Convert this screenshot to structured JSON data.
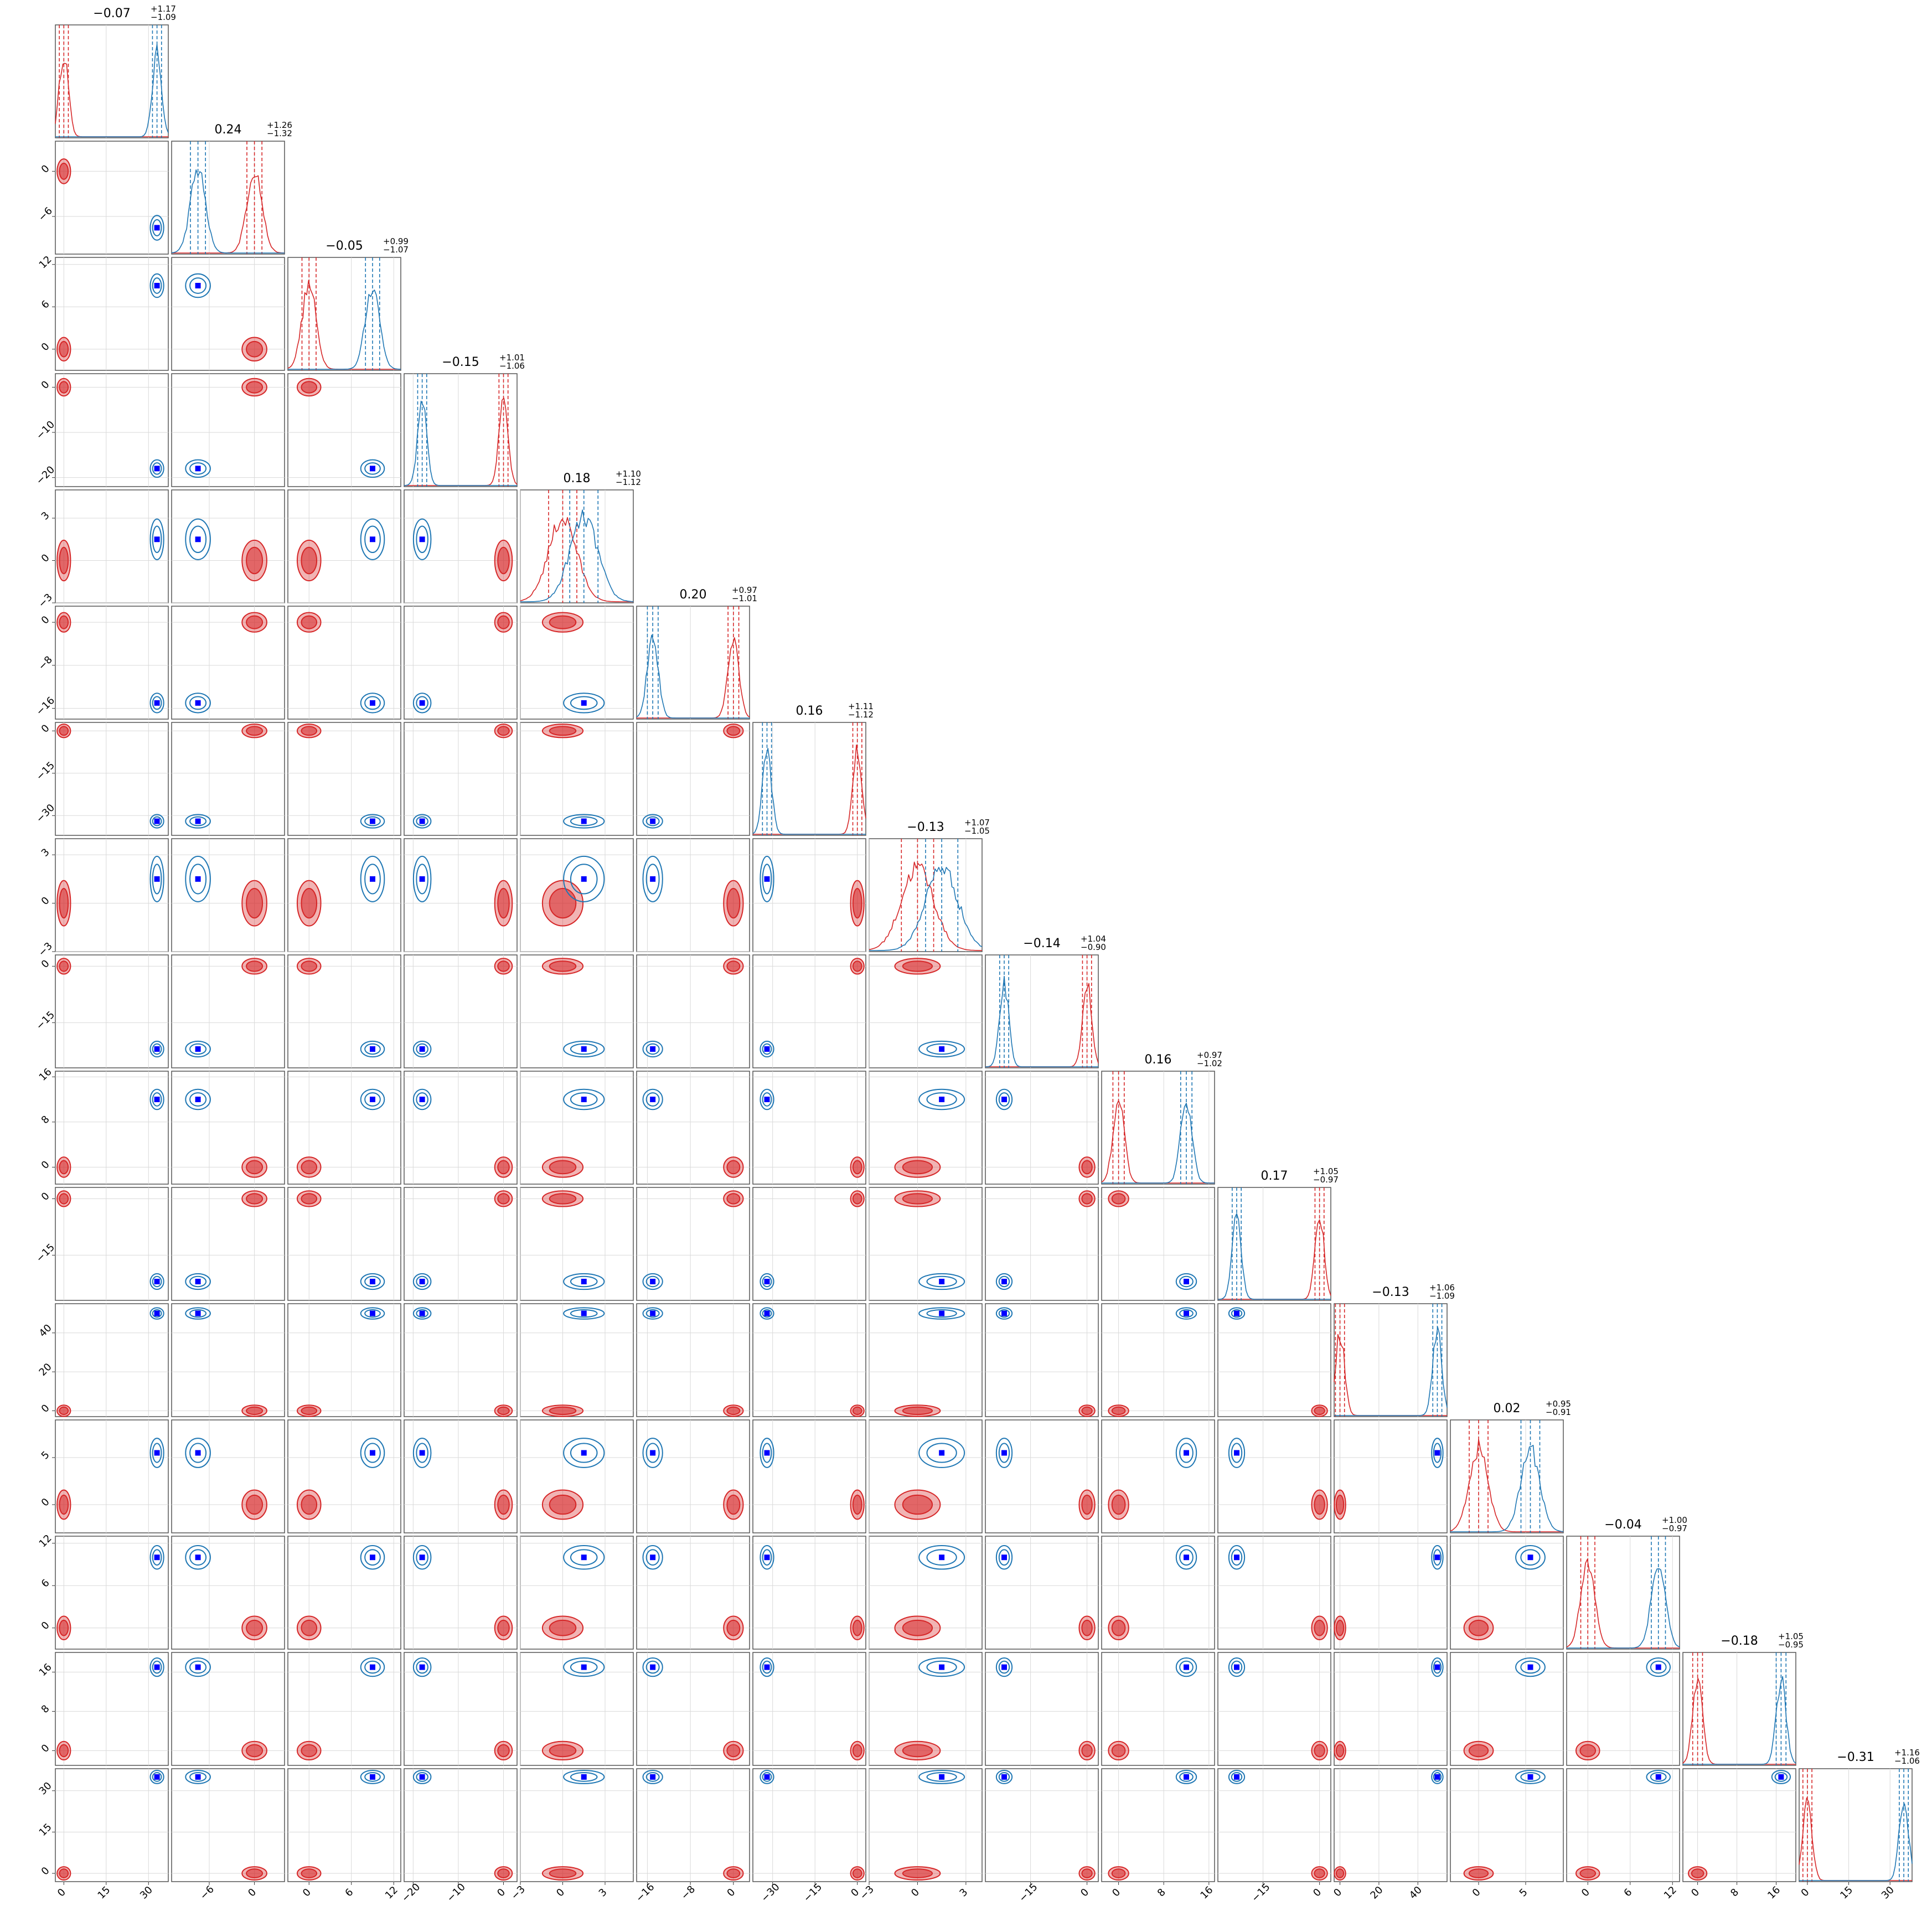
{
  "chart_data": {
    "type": "corner",
    "dimensions": 16,
    "grid": true,
    "series": [
      {
        "color": "#d62728",
        "means": [
          0,
          0,
          0,
          0,
          0,
          0,
          0,
          0,
          0,
          0,
          0,
          0,
          0,
          0,
          0,
          0
        ]
      },
      {
        "color": "#1f77b4",
        "means": [
          33,
          -7.5,
          9,
          -18,
          1.5,
          -15,
          -32,
          1.5,
          -22,
          12,
          -22,
          50,
          5.5,
          10,
          17,
          35
        ]
      }
    ],
    "truth_marker_color": "#0000ff",
    "titles": [
      {
        "v": "−0.07",
        "p": "+1.17",
        "m": "−1.09"
      },
      {
        "v": "0.24",
        "p": "+1.26",
        "m": "−1.32"
      },
      {
        "v": "−0.05",
        "p": "+0.99",
        "m": "−1.07"
      },
      {
        "v": "−0.15",
        "p": "+1.01",
        "m": "−1.06"
      },
      {
        "v": "0.18",
        "p": "+1.10",
        "m": "−1.12"
      },
      {
        "v": "0.20",
        "p": "+0.97",
        "m": "−1.01"
      },
      {
        "v": "0.16",
        "p": "+1.11",
        "m": "−1.12"
      },
      {
        "v": "−0.13",
        "p": "+1.07",
        "m": "−1.05"
      },
      {
        "v": "−0.14",
        "p": "+1.04",
        "m": "−0.90"
      },
      {
        "v": "0.16",
        "p": "+0.97",
        "m": "−1.02"
      },
      {
        "v": "0.17",
        "p": "+1.05",
        "m": "−0.97"
      },
      {
        "v": "−0.13",
        "p": "+1.06",
        "m": "−1.09"
      },
      {
        "v": "0.02",
        "p": "+0.95",
        "m": "−0.91"
      },
      {
        "v": "−0.04",
        "p": "+1.00",
        "m": "−0.97"
      },
      {
        "v": "−0.18",
        "p": "+1.05",
        "m": "−0.95"
      },
      {
        "v": "−0.31",
        "p": "+1.16",
        "m": "−1.06"
      }
    ],
    "axes": [
      {
        "range": [
          -3,
          37
        ],
        "ticks": [
          0,
          15,
          30
        ],
        "labels": [
          "0",
          "15",
          "30"
        ]
      },
      {
        "range": [
          -11,
          4
        ],
        "ticks": [
          -6,
          0
        ],
        "labels": [
          "−6",
          "0"
        ]
      },
      {
        "range": [
          -3,
          13
        ],
        "ticks": [
          0,
          6,
          12
        ],
        "labels": [
          "0",
          "6",
          "12"
        ]
      },
      {
        "range": [
          -22,
          3
        ],
        "ticks": [
          -20,
          -10,
          0
        ],
        "labels": [
          "−20",
          "−10",
          "0"
        ]
      },
      {
        "range": [
          -3,
          5
        ],
        "ticks": [
          -3,
          0,
          3
        ],
        "labels": [
          "−3",
          "0",
          "3"
        ]
      },
      {
        "range": [
          -18,
          3
        ],
        "ticks": [
          -16,
          -8,
          0
        ],
        "labels": [
          "−16",
          "−8",
          "0"
        ]
      },
      {
        "range": [
          -37,
          3
        ],
        "ticks": [
          -30,
          -15,
          0
        ],
        "labels": [
          "−30",
          "−15",
          "0"
        ]
      },
      {
        "range": [
          -3,
          4
        ],
        "ticks": [
          -3,
          0,
          3
        ],
        "labels": [
          "−3",
          "0",
          "3"
        ]
      },
      {
        "range": [
          -27,
          3
        ],
        "ticks": [
          -15,
          0
        ],
        "labels": [
          "−15",
          "0"
        ]
      },
      {
        "range": [
          -3,
          17
        ],
        "ticks": [
          0,
          8,
          16
        ],
        "labels": [
          "0",
          "8",
          "16"
        ]
      },
      {
        "range": [
          -27,
          3
        ],
        "ticks": [
          -15,
          0
        ],
        "labels": [
          "−15",
          "0"
        ]
      },
      {
        "range": [
          -3,
          55
        ],
        "ticks": [
          0,
          20,
          40
        ],
        "labels": [
          "0",
          "20",
          "40"
        ]
      },
      {
        "range": [
          -3,
          9
        ],
        "ticks": [
          0,
          5
        ],
        "labels": [
          "0",
          "5"
        ]
      },
      {
        "range": [
          -3,
          13
        ],
        "ticks": [
          0,
          6,
          12
        ],
        "labels": [
          "0",
          "6",
          "12"
        ]
      },
      {
        "range": [
          -3,
          20
        ],
        "ticks": [
          0,
          8,
          16
        ],
        "labels": [
          "0",
          "8",
          "16"
        ]
      },
      {
        "range": [
          -3,
          38
        ],
        "ticks": [
          0,
          15,
          30
        ],
        "labels": [
          "0",
          "15",
          "30"
        ]
      }
    ]
  }
}
